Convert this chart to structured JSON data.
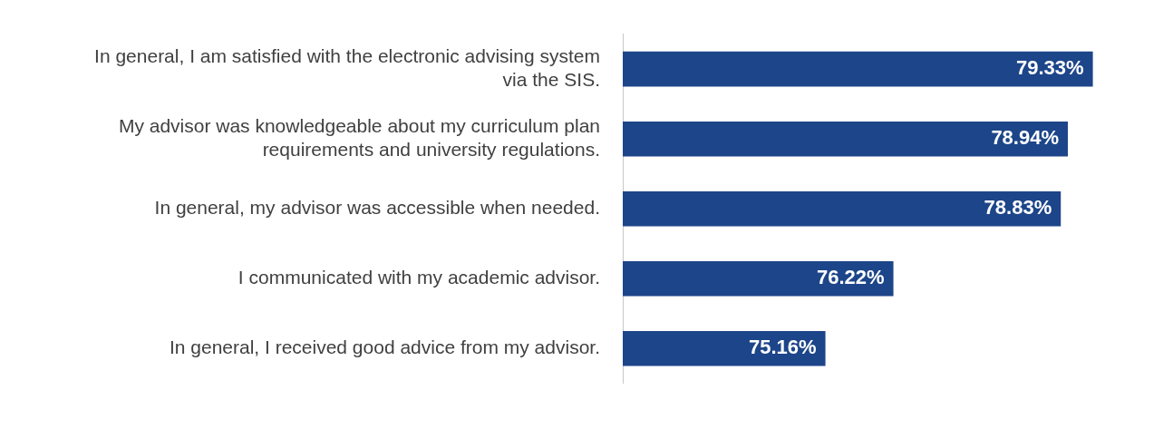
{
  "chart_data": {
    "type": "bar",
    "orientation": "horizontal",
    "categories": [
      "In general, I am satisfied with the electronic advising system via the SIS.",
      "My advisor was knowledgeable about my curriculum plan requirements and university regulations.",
      "In general, my advisor was accessible when needed.",
      "I communicated with my academic advisor.",
      "In general, I received good advice from my advisor."
    ],
    "values": [
      79.33,
      78.94,
      78.83,
      76.22,
      75.16
    ],
    "color": "#1d4589",
    "data_labels": true,
    "value_labels": [
      "79.33%",
      "78.94%",
      "78.83%",
      "76.22%",
      "75.16%"
    ],
    "grid": false,
    "legend": false,
    "tick_labels": "y"
  }
}
